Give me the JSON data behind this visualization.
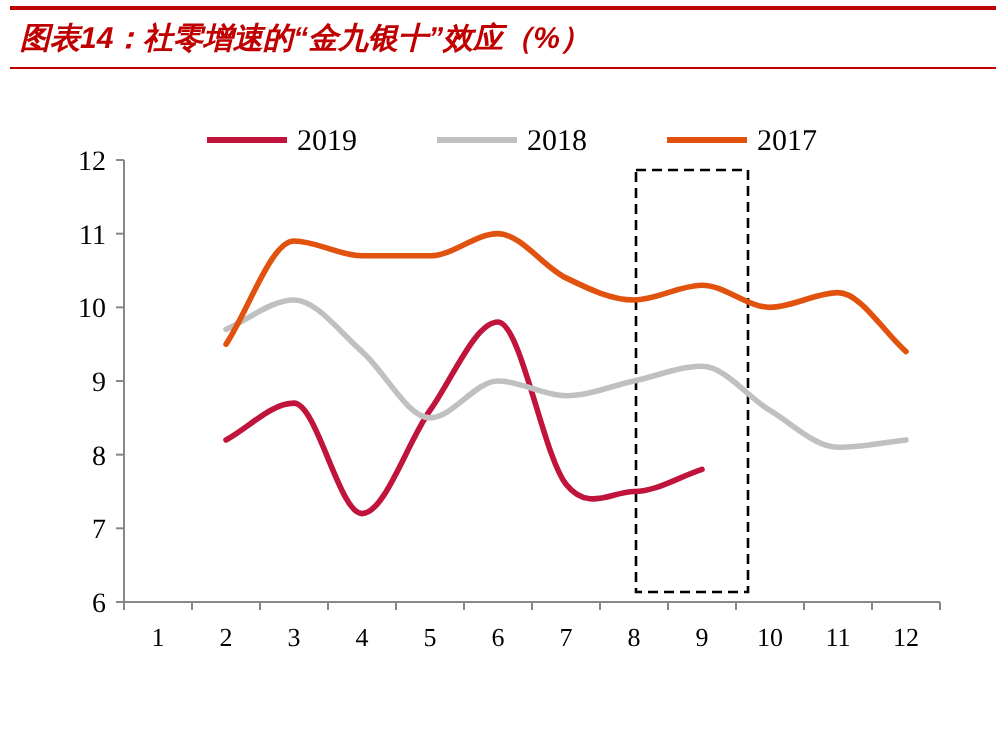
{
  "chart_data": {
    "type": "line",
    "title": "图表14：社零增速的“金九银十”效应（%）",
    "categories": [
      "1",
      "2",
      "3",
      "4",
      "5",
      "6",
      "7",
      "8",
      "9",
      "10",
      "11",
      "12"
    ],
    "series": [
      {
        "name": "2019",
        "color": "#c0143c",
        "values": [
          null,
          8.2,
          8.7,
          7.2,
          8.6,
          9.8,
          7.6,
          7.5,
          7.8,
          null,
          null,
          null
        ]
      },
      {
        "name": "2018",
        "color": "#c0c0c0",
        "values": [
          null,
          9.7,
          10.1,
          9.4,
          8.5,
          9.0,
          8.8,
          9.0,
          9.2,
          8.6,
          8.1,
          8.2
        ]
      },
      {
        "name": "2017",
        "color": "#e2520f",
        "values": [
          null,
          9.5,
          10.9,
          10.7,
          10.7,
          11.0,
          10.4,
          10.1,
          10.3,
          10.0,
          10.2,
          9.4
        ]
      }
    ],
    "ylim": [
      6,
      12
    ],
    "yticks": [
      6,
      7,
      8,
      9,
      10,
      11,
      12
    ],
    "legend": "top",
    "grid": false,
    "marker": "none",
    "line_style": "solid"
  }
}
